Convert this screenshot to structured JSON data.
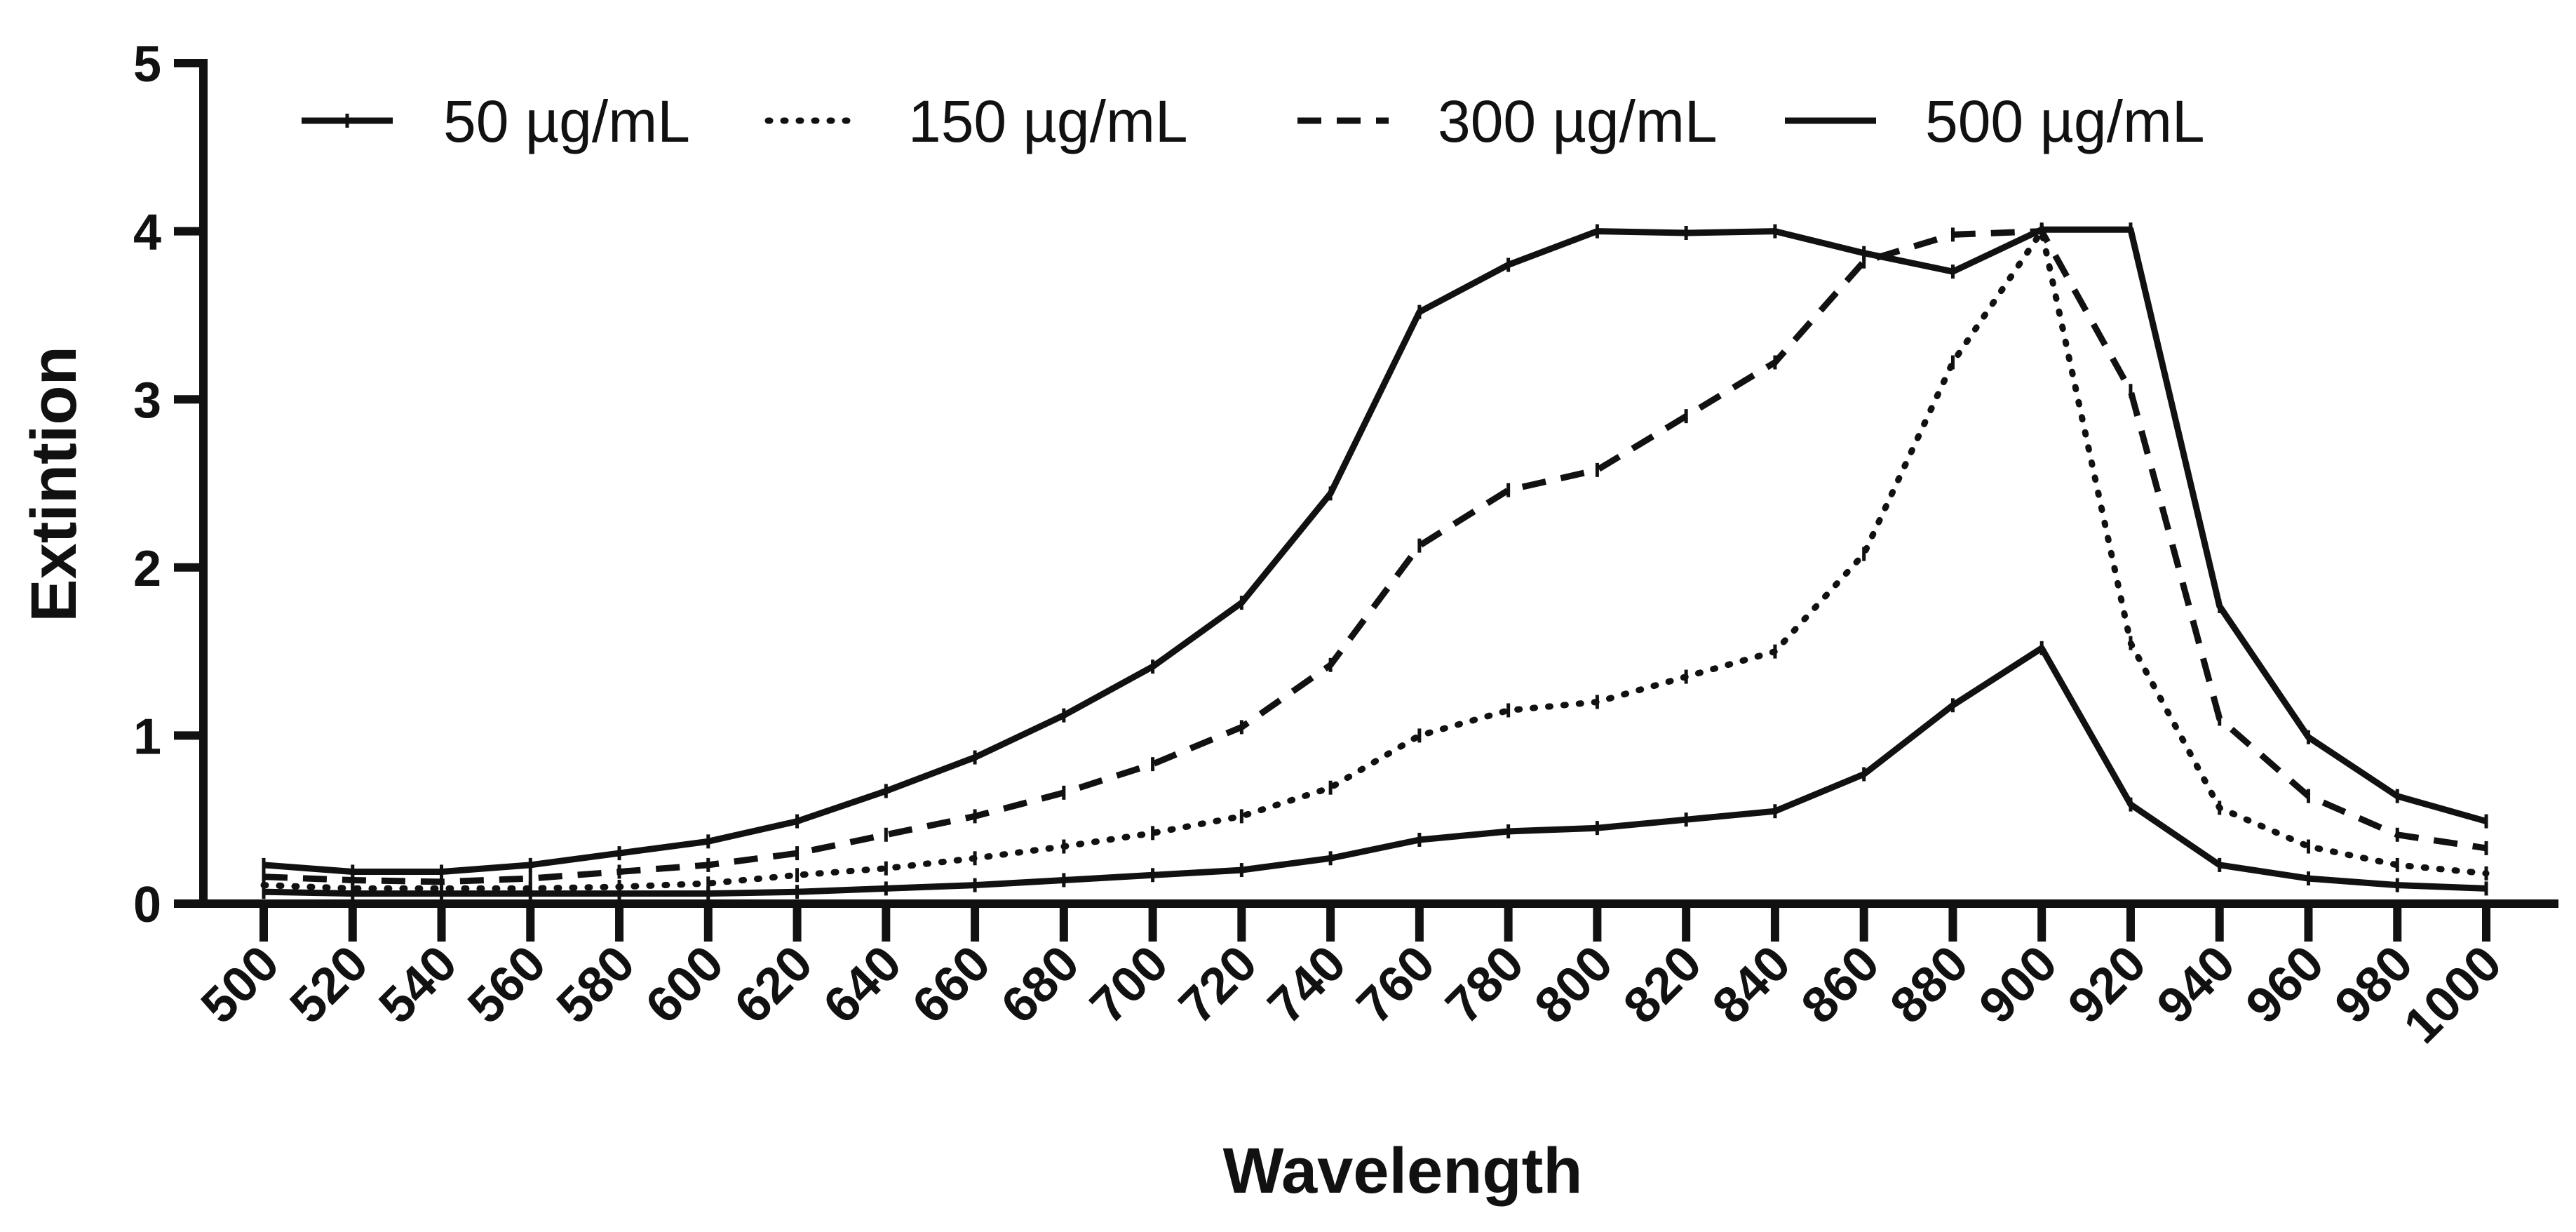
{
  "chart_data": {
    "type": "line",
    "title": "",
    "xlabel": "Wavelength",
    "ylabel": "Extintion",
    "xlim": [
      500,
      1000
    ],
    "ylim": [
      0,
      5
    ],
    "x": [
      500,
      520,
      540,
      560,
      580,
      600,
      620,
      640,
      660,
      680,
      700,
      720,
      740,
      760,
      780,
      800,
      820,
      840,
      860,
      880,
      900,
      920,
      940,
      960,
      980,
      1000
    ],
    "x_tick_labels": [
      "500",
      "520",
      "540",
      "560",
      "580",
      "600",
      "620",
      "640",
      "660",
      "680",
      "700",
      "720",
      "740",
      "760",
      "780",
      "800",
      "820",
      "840",
      "860",
      "880",
      "900",
      "920",
      "940",
      "960",
      "980",
      "1000"
    ],
    "y_ticks": [
      0,
      1,
      2,
      3,
      4,
      5
    ],
    "y_tick_labels": [
      "0",
      "1",
      "2",
      "3",
      "4",
      "5"
    ],
    "grid": false,
    "legend_position": "top",
    "series": [
      {
        "name": "50 µg/mL",
        "style": "solid",
        "values": [
          0.07,
          0.06,
          0.06,
          0.06,
          0.06,
          0.06,
          0.07,
          0.09,
          0.11,
          0.14,
          0.17,
          0.2,
          0.27,
          0.38,
          0.43,
          0.45,
          0.5,
          0.55,
          0.77,
          1.18,
          1.52,
          0.59,
          0.23,
          0.15,
          0.11,
          0.09
        ]
      },
      {
        "name": "150 µg/mL",
        "style": "dotted",
        "values": [
          0.11,
          0.09,
          0.09,
          0.09,
          0.1,
          0.12,
          0.17,
          0.21,
          0.27,
          0.34,
          0.42,
          0.52,
          0.69,
          1.0,
          1.15,
          1.2,
          1.35,
          1.5,
          2.08,
          3.22,
          4.0,
          1.55,
          0.57,
          0.34,
          0.23,
          0.18
        ]
      },
      {
        "name": "300 µg/mL",
        "style": "dashed",
        "values": [
          0.16,
          0.14,
          0.13,
          0.15,
          0.19,
          0.23,
          0.3,
          0.41,
          0.52,
          0.66,
          0.83,
          1.05,
          1.42,
          2.13,
          2.46,
          2.58,
          2.9,
          3.22,
          3.82,
          3.98,
          4.0,
          3.05,
          1.1,
          0.64,
          0.41,
          0.33
        ]
      },
      {
        "name": "500 µg/mL",
        "style": "solid",
        "values": [
          0.23,
          0.19,
          0.19,
          0.23,
          0.3,
          0.37,
          0.49,
          0.67,
          0.87,
          1.12,
          1.41,
          1.79,
          2.44,
          3.52,
          3.8,
          4.0,
          3.99,
          4.0,
          3.87,
          3.76,
          4.01,
          4.01,
          1.77,
          0.99,
          0.64,
          0.49
        ]
      }
    ]
  }
}
